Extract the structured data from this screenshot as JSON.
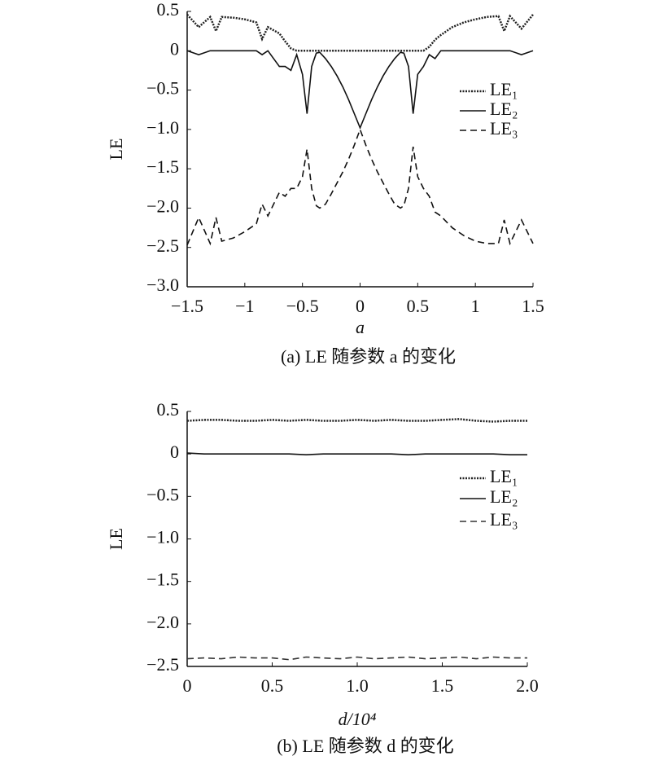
{
  "chart_data": [
    {
      "type": "line",
      "caption": "(a) LE 随参数 a 的变化",
      "xlabel": "a",
      "ylabel": "LE",
      "x": [
        -1.5,
        -1.4,
        -1.3,
        -1.25,
        -1.2,
        -1.1,
        -1.0,
        -0.9,
        -0.85,
        -0.8,
        -0.7,
        -0.65,
        -0.6,
        -0.55,
        -0.5,
        -0.46,
        -0.42,
        -0.38,
        -0.35,
        -0.3,
        -0.25,
        -0.2,
        -0.15,
        -0.1,
        -0.05,
        0,
        0.05,
        0.1,
        0.15,
        0.2,
        0.25,
        0.3,
        0.35,
        0.38,
        0.42,
        0.46,
        0.5,
        0.55,
        0.6,
        0.65,
        0.7,
        0.8,
        0.85,
        0.9,
        1.0,
        1.1,
        1.2,
        1.25,
        1.3,
        1.4,
        1.5
      ],
      "series": [
        {
          "name": "LE₁",
          "color": "#222222",
          "line_style": "dotted",
          "values": [
            0.46,
            0.3,
            0.43,
            0.25,
            0.43,
            0.42,
            0.4,
            0.36,
            0.15,
            0.3,
            0.22,
            0.12,
            0.03,
            0,
            0,
            0,
            0,
            0,
            0,
            0,
            0,
            0,
            0,
            0,
            0,
            0,
            0,
            0,
            0,
            0,
            0,
            0,
            0,
            0,
            0,
            0,
            0,
            0,
            0.05,
            0.14,
            0.2,
            0.3,
            0.33,
            0.36,
            0.4,
            0.43,
            0.44,
            0.25,
            0.44,
            0.28,
            0.46
          ]
        },
        {
          "name": "LE₂",
          "color": "#111111",
          "line_style": "solid",
          "values": [
            0,
            -0.05,
            0,
            0,
            0,
            0,
            0,
            0,
            -0.05,
            0,
            -0.2,
            -0.2,
            -0.25,
            -0.05,
            -0.3,
            -0.8,
            -0.2,
            -0.03,
            -0.02,
            -0.1,
            -0.2,
            -0.32,
            -0.46,
            -0.62,
            -0.8,
            -0.98,
            -0.8,
            -0.62,
            -0.46,
            -0.32,
            -0.2,
            -0.1,
            -0.02,
            -0.03,
            -0.2,
            -0.8,
            -0.3,
            -0.2,
            -0.05,
            -0.1,
            0,
            0,
            0,
            0,
            0,
            0,
            0,
            0,
            0,
            -0.05,
            0
          ]
        },
        {
          "name": "LE₃",
          "color": "#111111",
          "line_style": "dashed",
          "values": [
            -2.47,
            -2.12,
            -2.45,
            -2.12,
            -2.42,
            -2.38,
            -2.3,
            -2.2,
            -1.95,
            -2.1,
            -1.8,
            -1.85,
            -1.75,
            -1.75,
            -1.6,
            -1.25,
            -1.75,
            -1.97,
            -2.0,
            -1.95,
            -1.82,
            -1.68,
            -1.54,
            -1.38,
            -1.2,
            -1.0,
            -1.2,
            -1.38,
            -1.54,
            -1.68,
            -1.82,
            -1.95,
            -2.0,
            -1.97,
            -1.75,
            -1.22,
            -1.6,
            -1.75,
            -1.85,
            -2.05,
            -2.1,
            -2.25,
            -2.3,
            -2.35,
            -2.42,
            -2.45,
            -2.45,
            -2.15,
            -2.45,
            -2.15,
            -2.45
          ]
        }
      ],
      "xlim": [
        -1.5,
        1.5
      ],
      "xticks": [
        {
          "value": -1.5,
          "label": "−1.5"
        },
        {
          "value": -1,
          "label": "−1"
        },
        {
          "value": -0.5,
          "label": "−0.5"
        },
        0,
        0.5,
        1,
        1.5
      ],
      "ylim": [
        -3.0,
        0.5
      ],
      "yticks": [
        0.5,
        0,
        {
          "value": -0.5,
          "label": "−0.5"
        },
        {
          "value": -1.0,
          "label": "−1.0"
        },
        {
          "value": -1.5,
          "label": "−1.5"
        },
        {
          "value": -2.0,
          "label": "−2.0"
        },
        {
          "value": -2.5,
          "label": "−2.5"
        },
        {
          "value": -3.0,
          "label": "−3.0"
        }
      ]
    },
    {
      "type": "line",
      "caption": "(b) LE 随参数 d 的变化",
      "xlabel": "d/10⁴",
      "ylabel": "LE",
      "x": [
        0,
        0.1,
        0.2,
        0.3,
        0.4,
        0.5,
        0.6,
        0.7,
        0.8,
        0.9,
        1.0,
        1.1,
        1.2,
        1.3,
        1.4,
        1.5,
        1.6,
        1.7,
        1.8,
        1.9,
        2.0
      ],
      "series": [
        {
          "name": "LE₁",
          "color": "#222222",
          "line_style": "dotted",
          "values": [
            0.39,
            0.4,
            0.4,
            0.39,
            0.39,
            0.4,
            0.39,
            0.4,
            0.39,
            0.39,
            0.4,
            0.39,
            0.4,
            0.39,
            0.39,
            0.4,
            0.41,
            0.39,
            0.38,
            0.39,
            0.39
          ]
        },
        {
          "name": "LE₂",
          "color": "#111111",
          "line_style": "solid",
          "values": [
            0.01,
            0,
            0,
            0,
            0,
            0,
            0,
            -0.01,
            0,
            0,
            0,
            0,
            0,
            -0.01,
            0,
            0,
            0,
            0,
            0,
            -0.01,
            -0.01
          ]
        },
        {
          "name": "LE₃",
          "color": "#333333",
          "line_style": "dashed",
          "values": [
            -2.41,
            -2.4,
            -2.41,
            -2.39,
            -2.4,
            -2.4,
            -2.42,
            -2.39,
            -2.4,
            -2.41,
            -2.39,
            -2.41,
            -2.4,
            -2.39,
            -2.41,
            -2.4,
            -2.39,
            -2.41,
            -2.39,
            -2.4,
            -2.4
          ]
        }
      ],
      "xlim": [
        0,
        2.0
      ],
      "xticks": [
        0,
        0.5,
        {
          "value": 1.0,
          "label": "1.0"
        },
        1.5,
        {
          "value": 2.0,
          "label": "2.0"
        }
      ],
      "ylim": [
        -2.5,
        0.5
      ],
      "yticks": [
        0.5,
        0,
        {
          "value": -0.5,
          "label": "−0.5"
        },
        {
          "value": -1.0,
          "label": "−1.0"
        },
        {
          "value": -1.5,
          "label": "−1.5"
        },
        {
          "value": -2.0,
          "label": "−2.0"
        },
        {
          "value": -2.5,
          "label": "−2.5"
        }
      ]
    }
  ]
}
